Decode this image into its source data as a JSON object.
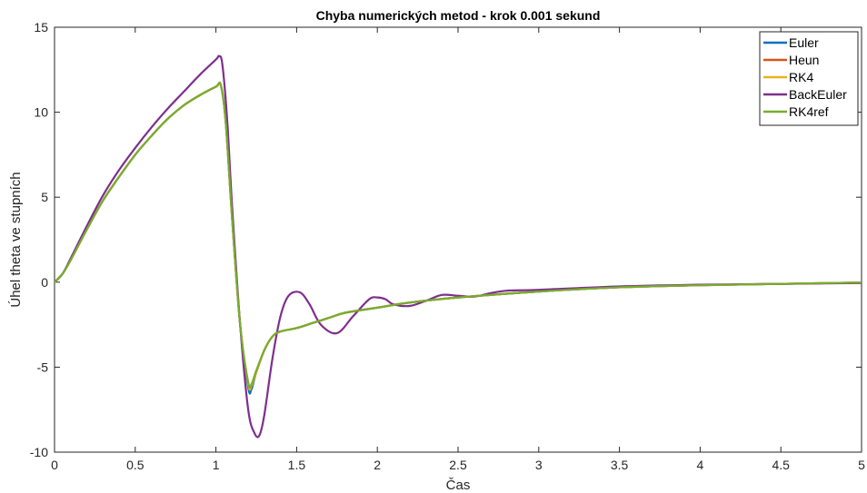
{
  "chart_data": {
    "type": "line",
    "title": "Chyba numerických metod - krok 0.001 sekund",
    "xlabel": "Čas",
    "ylabel": "Úhel theta ve stupních",
    "xlim": [
      0,
      5
    ],
    "ylim": [
      -10,
      15
    ],
    "xticks": [
      0,
      0.5,
      1,
      1.5,
      2,
      2.5,
      3,
      3.5,
      4,
      4.5,
      5
    ],
    "xtick_labels": [
      "0",
      "0.5",
      "1",
      "1.5",
      "2",
      "2.5",
      "3",
      "3.5",
      "4",
      "4.5",
      "5"
    ],
    "yticks": [
      -10,
      -5,
      0,
      5,
      10,
      15
    ],
    "ytick_labels": [
      "-10",
      "-5",
      "0",
      "5",
      "10",
      "15"
    ],
    "grid": false,
    "legend_position": "top-right",
    "series": [
      {
        "name": "Euler",
        "color": "#0072BD",
        "x": [
          0,
          0.05,
          0.1,
          0.2,
          0.3,
          0.4,
          0.5,
          0.6,
          0.7,
          0.8,
          0.9,
          1.0,
          1.03,
          1.06,
          1.1,
          1.15,
          1.2,
          1.22,
          1.25,
          1.3,
          1.35,
          1.4,
          1.5,
          1.6,
          1.7,
          1.8,
          2.0,
          2.2,
          2.5,
          3.0,
          3.5,
          4.0,
          4.5,
          5.0
        ],
        "y": [
          0,
          0.5,
          1.3,
          3.1,
          4.8,
          6.2,
          7.5,
          8.6,
          9.6,
          10.4,
          11.0,
          11.5,
          11.6,
          9.5,
          3.8,
          -2.5,
          -6.2,
          -6.3,
          -5.3,
          -4.0,
          -3.2,
          -2.9,
          -2.7,
          -2.4,
          -2.1,
          -1.8,
          -1.5,
          -1.2,
          -0.9,
          -0.55,
          -0.3,
          -0.18,
          -0.1,
          -0.02
        ]
      },
      {
        "name": "Heun",
        "color": "#D95319",
        "x": [
          0,
          0.05,
          0.1,
          0.2,
          0.3,
          0.4,
          0.5,
          0.6,
          0.7,
          0.8,
          0.9,
          1.0,
          1.03,
          1.06,
          1.1,
          1.15,
          1.2,
          1.22,
          1.25,
          1.3,
          1.35,
          1.4,
          1.5,
          1.6,
          1.7,
          1.8,
          2.0,
          2.2,
          2.5,
          3.0,
          3.5,
          4.0,
          4.5,
          5.0
        ],
        "y": [
          0,
          0.5,
          1.3,
          3.1,
          4.8,
          6.2,
          7.5,
          8.6,
          9.6,
          10.4,
          11.0,
          11.5,
          11.6,
          9.5,
          3.8,
          -2.5,
          -6.0,
          -6.1,
          -5.3,
          -4.0,
          -3.2,
          -2.9,
          -2.7,
          -2.4,
          -2.1,
          -1.8,
          -1.5,
          -1.2,
          -0.9,
          -0.55,
          -0.3,
          -0.18,
          -0.1,
          -0.02
        ]
      },
      {
        "name": "RK4",
        "color": "#EDB120",
        "x": [
          0,
          0.05,
          0.1,
          0.2,
          0.3,
          0.4,
          0.5,
          0.6,
          0.7,
          0.8,
          0.9,
          1.0,
          1.03,
          1.06,
          1.1,
          1.15,
          1.2,
          1.22,
          1.25,
          1.3,
          1.35,
          1.4,
          1.5,
          1.6,
          1.7,
          1.8,
          2.0,
          2.2,
          2.5,
          3.0,
          3.5,
          4.0,
          4.5,
          5.0
        ],
        "y": [
          0,
          0.5,
          1.3,
          3.1,
          4.8,
          6.2,
          7.5,
          8.6,
          9.6,
          10.4,
          11.0,
          11.5,
          11.6,
          9.5,
          3.8,
          -2.5,
          -6.0,
          -6.1,
          -5.3,
          -4.0,
          -3.2,
          -2.9,
          -2.7,
          -2.4,
          -2.1,
          -1.8,
          -1.5,
          -1.2,
          -0.9,
          -0.55,
          -0.3,
          -0.18,
          -0.1,
          -0.02
        ]
      },
      {
        "name": "BackEuler",
        "color": "#7E2F8E",
        "x": [
          0,
          0.05,
          0.1,
          0.2,
          0.3,
          0.4,
          0.5,
          0.6,
          0.7,
          0.8,
          0.9,
          1.0,
          1.02,
          1.04,
          1.07,
          1.1,
          1.15,
          1.2,
          1.24,
          1.27,
          1.3,
          1.35,
          1.4,
          1.45,
          1.52,
          1.58,
          1.65,
          1.75,
          1.85,
          1.95,
          2.0,
          2.05,
          2.1,
          2.2,
          2.3,
          2.4,
          2.5,
          2.6,
          2.7,
          2.8,
          3.0,
          3.5,
          4.0,
          4.5,
          5.0
        ],
        "y": [
          0,
          0.5,
          1.4,
          3.3,
          5.1,
          6.6,
          7.9,
          9.1,
          10.2,
          11.2,
          12.2,
          13.1,
          13.3,
          12.8,
          9.5,
          4.5,
          -2.5,
          -7.5,
          -8.9,
          -9.0,
          -7.8,
          -4.5,
          -2.0,
          -0.8,
          -0.6,
          -1.3,
          -2.5,
          -3.0,
          -2.0,
          -1.0,
          -0.9,
          -1.0,
          -1.3,
          -1.4,
          -1.1,
          -0.75,
          -0.8,
          -0.85,
          -0.65,
          -0.5,
          -0.45,
          -0.25,
          -0.15,
          -0.1,
          -0.05
        ]
      },
      {
        "name": "RK4ref",
        "color": "#77AC30",
        "x": [
          0,
          0.05,
          0.1,
          0.2,
          0.3,
          0.4,
          0.5,
          0.6,
          0.7,
          0.8,
          0.9,
          1.0,
          1.03,
          1.06,
          1.1,
          1.15,
          1.2,
          1.22,
          1.25,
          1.3,
          1.35,
          1.4,
          1.5,
          1.6,
          1.7,
          1.8,
          2.0,
          2.2,
          2.5,
          3.0,
          3.5,
          4.0,
          4.5,
          5.0
        ],
        "y": [
          0,
          0.5,
          1.3,
          3.1,
          4.8,
          6.2,
          7.5,
          8.6,
          9.6,
          10.4,
          11.0,
          11.5,
          11.6,
          9.5,
          3.8,
          -2.5,
          -5.9,
          -6.0,
          -5.2,
          -4.0,
          -3.2,
          -2.9,
          -2.7,
          -2.4,
          -2.1,
          -1.8,
          -1.5,
          -1.2,
          -0.9,
          -0.55,
          -0.3,
          -0.18,
          -0.1,
          -0.02
        ]
      }
    ]
  }
}
